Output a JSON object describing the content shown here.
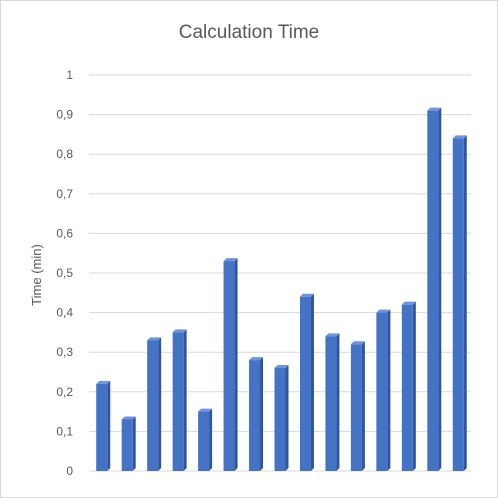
{
  "chart_data": {
    "type": "bar",
    "title": "Calculation Time",
    "xlabel": "",
    "ylabel": "Time (min)",
    "ylim": [
      0,
      1
    ],
    "yticks": [
      0,
      0.1,
      0.2,
      0.3,
      0.4,
      0.5,
      0.6,
      0.7,
      0.8,
      0.9,
      1
    ],
    "ytick_labels": [
      "0",
      "0,1",
      "0,2",
      "0,3",
      "0,4",
      "0,5",
      "0,6",
      "0,7",
      "0,8",
      "0,9",
      "1"
    ],
    "values": [
      0.22,
      0.13,
      0.33,
      0.35,
      0.15,
      0.53,
      0.28,
      0.26,
      0.44,
      0.34,
      0.32,
      0.4,
      0.42,
      0.91,
      0.84
    ],
    "grid": true,
    "legend": "none",
    "bar_color": "#4472c4",
    "bar_side_color": "#2f55a0",
    "bar_top_color": "#6f93d6"
  }
}
